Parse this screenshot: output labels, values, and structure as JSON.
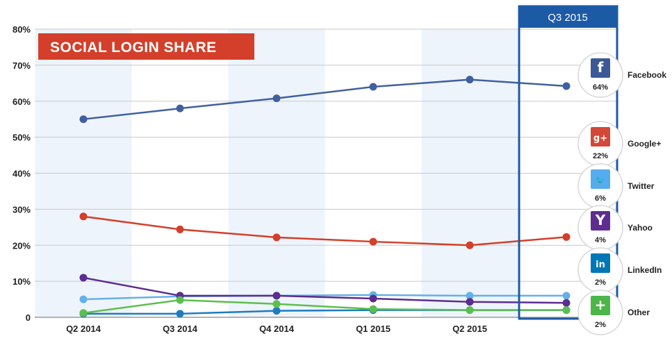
{
  "chart_data": {
    "type": "line",
    "title": "SOCIAL LOGIN SHARE",
    "highlight_label": "Q3 2015",
    "categories": [
      "Q2 2014",
      "Q3 2014",
      "Q4 2014",
      "Q1 2015",
      "Q2 2015",
      ""
    ],
    "ylim": [
      0,
      80
    ],
    "yticks": [
      "0",
      "10%",
      "20%",
      "30%",
      "40%",
      "50%",
      "60%",
      "70%",
      "80%"
    ],
    "grid": true,
    "legend_position": "right",
    "series": [
      {
        "name": "Facebook",
        "color": "#41609f",
        "icon": "facebook-icon",
        "icon_color": "#3b5998",
        "glyph": "f",
        "current": "64%",
        "values": [
          55,
          58,
          60.8,
          64,
          66,
          64.2
        ]
      },
      {
        "name": "Google+",
        "color": "#d33f2a",
        "icon": "google-plus-icon",
        "icon_color": "#d34836",
        "glyph": "g+",
        "current": "22%",
        "values": [
          28,
          24.4,
          22.2,
          21,
          20,
          22.3
        ]
      },
      {
        "name": "Twitter",
        "color": "#64b0e8",
        "icon": "twitter-icon",
        "icon_color": "#55acee",
        "glyph": "🐦",
        "current": "6%",
        "values": [
          5,
          5.8,
          6,
          6.2,
          6,
          6
        ]
      },
      {
        "name": "Yahoo",
        "color": "#5b2d90",
        "icon": "yahoo-icon",
        "icon_color": "#5f2d91",
        "glyph": "Y",
        "current": "4%",
        "values": [
          11,
          6,
          6,
          5.2,
          4.3,
          4
        ]
      },
      {
        "name": "LinkedIn",
        "color": "#1f7bbf",
        "icon": "linkedin-icon",
        "icon_color": "#0077b5",
        "glyph": "in",
        "current": "2%",
        "values": [
          1,
          1,
          1.8,
          2,
          2,
          2
        ]
      },
      {
        "name": "Other",
        "color": "#5bbf4e",
        "icon": "plus-icon",
        "icon_color": "#4cb648",
        "glyph": "+",
        "current": "2%",
        "values": [
          1.2,
          4.8,
          3.7,
          2.3,
          2,
          2
        ]
      }
    ]
  }
}
